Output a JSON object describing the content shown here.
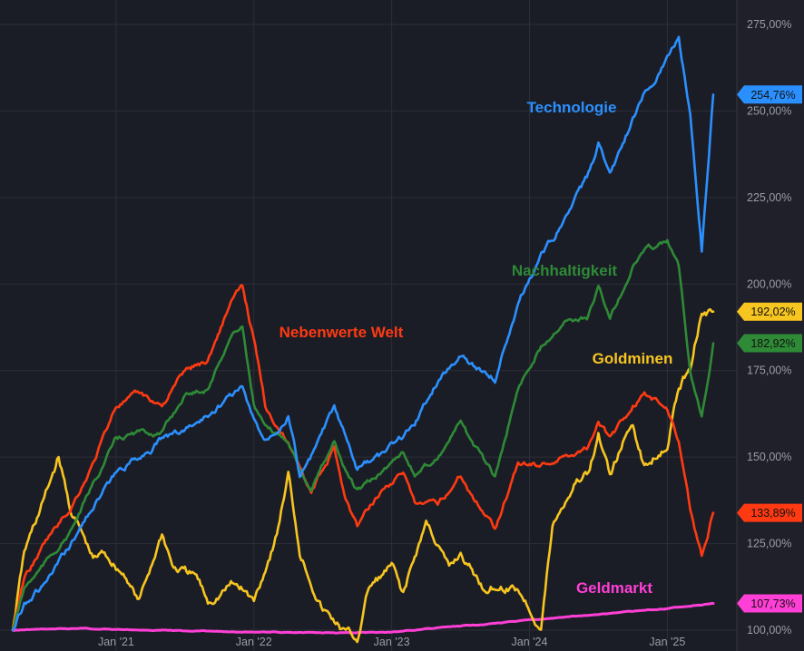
{
  "chart_data": {
    "type": "line",
    "title": "",
    "xlabel": "",
    "ylabel": "",
    "ylim": [
      97.5,
      280
    ],
    "y_ticks": [
      "100,00%",
      "125,00%",
      "150,00%",
      "175,00%",
      "200,00%",
      "225,00%",
      "250,00%",
      "275,00%"
    ],
    "y_tick_values": [
      100,
      125,
      150,
      175,
      200,
      225,
      250,
      275
    ],
    "x_range": [
      "2020-04",
      "2025-05"
    ],
    "x_ticks": [
      {
        "label": "Jan '21",
        "date": "2021-01"
      },
      {
        "label": "Jan '22",
        "date": "2022-01"
      },
      {
        "label": "Jan '23",
        "date": "2023-01"
      },
      {
        "label": "Jan '24",
        "date": "2024-01"
      },
      {
        "label": "Jan '25",
        "date": "2025-01"
      }
    ],
    "grid": true,
    "background": "#1b1d26",
    "series": [
      {
        "name": "Geldmarkt",
        "color": "#ff3fd6",
        "last_label": "107,73%",
        "points": [
          [
            "2020-04",
            100
          ],
          [
            "2020-10",
            100.5
          ],
          [
            "2021-06",
            99.8
          ],
          [
            "2022-01",
            99.5
          ],
          [
            "2022-07",
            99.2
          ],
          [
            "2023-01",
            99.4
          ],
          [
            "2023-07",
            101.2
          ],
          [
            "2024-01",
            102.8
          ],
          [
            "2024-07",
            104.6
          ],
          [
            "2025-01",
            106.3
          ],
          [
            "2025-05",
            107.73
          ]
        ]
      },
      {
        "name": "Goldminen",
        "color": "#f7c520",
        "last_label": "192,02%",
        "points": [
          [
            "2020-04",
            100
          ],
          [
            "2020-05",
            122
          ],
          [
            "2020-07",
            140
          ],
          [
            "2020-08",
            150
          ],
          [
            "2020-09",
            135
          ],
          [
            "2020-10",
            128
          ],
          [
            "2020-11",
            120
          ],
          [
            "2020-12",
            122
          ],
          [
            "2021-02",
            115
          ],
          [
            "2021-03",
            108
          ],
          [
            "2021-05",
            128
          ],
          [
            "2021-06",
            118
          ],
          [
            "2021-08",
            115
          ],
          [
            "2021-09",
            108
          ],
          [
            "2021-11",
            113
          ],
          [
            "2021-12",
            112
          ],
          [
            "2022-01",
            108
          ],
          [
            "2022-03",
            128
          ],
          [
            "2022-04",
            145
          ],
          [
            "2022-05",
            123
          ],
          [
            "2022-07",
            106
          ],
          [
            "2022-09",
            99
          ],
          [
            "2022-10",
            97
          ],
          [
            "2022-11",
            112
          ],
          [
            "2023-01",
            118
          ],
          [
            "2023-02",
            110
          ],
          [
            "2023-04",
            131
          ],
          [
            "2023-05",
            125
          ],
          [
            "2023-06",
            117
          ],
          [
            "2023-07",
            122
          ],
          [
            "2023-08",
            117
          ],
          [
            "2023-09",
            112
          ],
          [
            "2023-10",
            113
          ],
          [
            "2023-12",
            112
          ],
          [
            "2024-02",
            101
          ],
          [
            "2024-03",
            130
          ],
          [
            "2024-05",
            143
          ],
          [
            "2024-06",
            145
          ],
          [
            "2024-07",
            156
          ],
          [
            "2024-08",
            145
          ],
          [
            "2024-10",
            160
          ],
          [
            "2024-11",
            147
          ],
          [
            "2025-01",
            155
          ],
          [
            "2025-02",
            170
          ],
          [
            "2025-03",
            176
          ],
          [
            "2025-04",
            193
          ],
          [
            "2025-05",
            192.02
          ]
        ]
      },
      {
        "name": "Nebenwerte Welt",
        "color": "#ff3a12",
        "last_label": "133,89%",
        "points": [
          [
            "2020-04",
            100
          ],
          [
            "2020-05",
            115
          ],
          [
            "2020-07",
            126
          ],
          [
            "2020-09",
            135
          ],
          [
            "2020-11",
            148
          ],
          [
            "2021-01",
            165
          ],
          [
            "2021-03",
            168
          ],
          [
            "2021-05",
            165
          ],
          [
            "2021-07",
            175
          ],
          [
            "2021-09",
            178
          ],
          [
            "2021-11",
            195
          ],
          [
            "2021-12",
            199
          ],
          [
            "2022-01",
            184
          ],
          [
            "2022-02",
            165
          ],
          [
            "2022-03",
            160
          ],
          [
            "2022-05",
            148
          ],
          [
            "2022-06",
            140
          ],
          [
            "2022-08",
            152
          ],
          [
            "2022-09",
            138
          ],
          [
            "2022-10",
            130
          ],
          [
            "2022-12",
            140
          ],
          [
            "2023-02",
            146
          ],
          [
            "2023-03",
            136
          ],
          [
            "2023-05",
            136
          ],
          [
            "2023-07",
            145
          ],
          [
            "2023-08",
            139
          ],
          [
            "2023-10",
            130
          ],
          [
            "2023-12",
            148
          ],
          [
            "2024-02",
            148
          ],
          [
            "2024-04",
            150
          ],
          [
            "2024-06",
            153
          ],
          [
            "2024-07",
            161
          ],
          [
            "2024-08",
            155
          ],
          [
            "2024-10",
            165
          ],
          [
            "2024-11",
            168
          ],
          [
            "2025-01",
            164
          ],
          [
            "2025-02",
            155
          ],
          [
            "2025-03",
            135
          ],
          [
            "2025-04",
            121
          ],
          [
            "2025-05",
            133.89
          ]
        ]
      },
      {
        "name": "Nachhaltigkeit",
        "color": "#2e8a36",
        "last_label": "182,92%",
        "points": [
          [
            "2020-04",
            100
          ],
          [
            "2020-05",
            112
          ],
          [
            "2020-07",
            120
          ],
          [
            "2020-09",
            128
          ],
          [
            "2020-11",
            142
          ],
          [
            "2021-01",
            155
          ],
          [
            "2021-03",
            157
          ],
          [
            "2021-05",
            157
          ],
          [
            "2021-07",
            168
          ],
          [
            "2021-09",
            170
          ],
          [
            "2021-11",
            185
          ],
          [
            "2021-12",
            188
          ],
          [
            "2022-01",
            165
          ],
          [
            "2022-02",
            158
          ],
          [
            "2022-04",
            155
          ],
          [
            "2022-06",
            140
          ],
          [
            "2022-08",
            155
          ],
          [
            "2022-09",
            146
          ],
          [
            "2022-10",
            140
          ],
          [
            "2022-12",
            145
          ],
          [
            "2023-02",
            152
          ],
          [
            "2023-03",
            145
          ],
          [
            "2023-05",
            150
          ],
          [
            "2023-07",
            160
          ],
          [
            "2023-08",
            154
          ],
          [
            "2023-10",
            144
          ],
          [
            "2023-12",
            170
          ],
          [
            "2024-02",
            182
          ],
          [
            "2024-04",
            190
          ],
          [
            "2024-06",
            190
          ],
          [
            "2024-07",
            199
          ],
          [
            "2024-08",
            190
          ],
          [
            "2024-10",
            205
          ],
          [
            "2024-11",
            210
          ],
          [
            "2025-01",
            212
          ],
          [
            "2025-02",
            205
          ],
          [
            "2025-03",
            175
          ],
          [
            "2025-04",
            162
          ],
          [
            "2025-05",
            182.92
          ]
        ]
      },
      {
        "name": "Technologie",
        "color": "#2b90ff",
        "last_label": "254,76%",
        "points": [
          [
            "2020-04",
            100
          ],
          [
            "2020-05",
            108
          ],
          [
            "2020-07",
            114
          ],
          [
            "2020-09",
            124
          ],
          [
            "2020-11",
            136
          ],
          [
            "2021-01",
            145
          ],
          [
            "2021-03",
            150
          ],
          [
            "2021-05",
            155
          ],
          [
            "2021-07",
            158
          ],
          [
            "2021-09",
            162
          ],
          [
            "2021-11",
            168
          ],
          [
            "2021-12",
            170
          ],
          [
            "2022-01",
            160
          ],
          [
            "2022-02",
            155
          ],
          [
            "2022-04",
            163
          ],
          [
            "2022-05",
            145
          ],
          [
            "2022-06",
            150
          ],
          [
            "2022-08",
            164
          ],
          [
            "2022-09",
            155
          ],
          [
            "2022-10",
            146
          ],
          [
            "2022-12",
            150
          ],
          [
            "2023-02",
            156
          ],
          [
            "2023-03",
            160
          ],
          [
            "2023-05",
            172
          ],
          [
            "2023-07",
            180
          ],
          [
            "2023-08",
            177
          ],
          [
            "2023-10",
            173
          ],
          [
            "2023-12",
            195
          ],
          [
            "2024-02",
            208
          ],
          [
            "2024-04",
            218
          ],
          [
            "2024-06",
            230
          ],
          [
            "2024-07",
            240
          ],
          [
            "2024-08",
            230
          ],
          [
            "2024-10",
            248
          ],
          [
            "2024-11",
            255
          ],
          [
            "2025-01",
            265
          ],
          [
            "2025-02",
            272
          ],
          [
            "2025-03",
            248
          ],
          [
            "2025-04",
            210
          ],
          [
            "2025-05",
            254.76
          ]
        ]
      }
    ]
  }
}
